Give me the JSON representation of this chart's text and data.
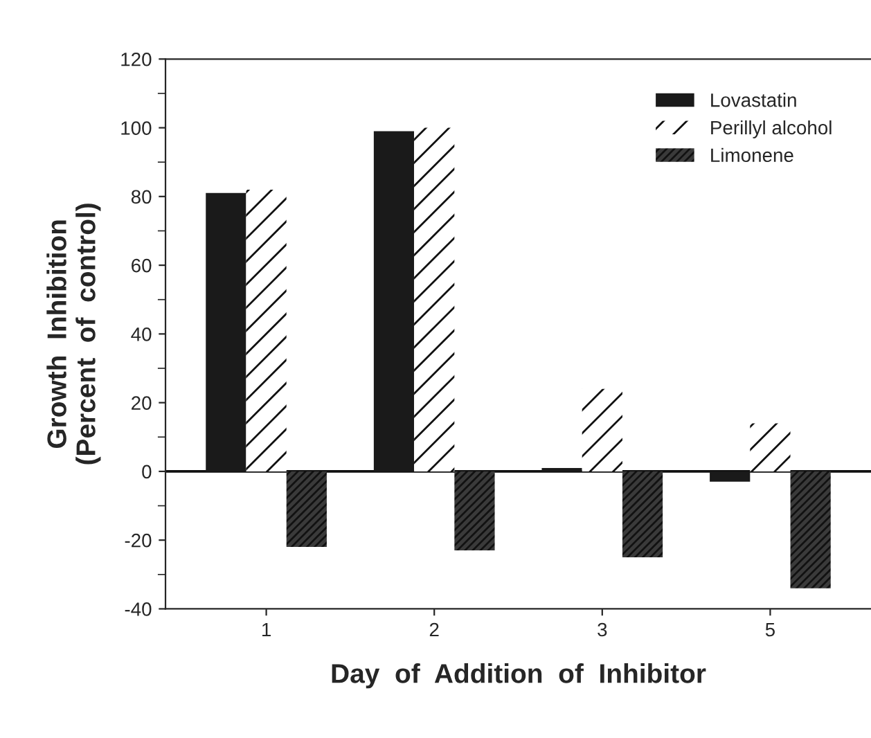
{
  "chart_data": {
    "type": "bar",
    "xlabel": "Day  of  Addition  of  Inhibitor",
    "ylabel": "Growth  Inhibition\n(Percent  of  control)",
    "categories": [
      "1",
      "2",
      "3",
      "5"
    ],
    "series": [
      {
        "name": "Lovastatin",
        "color": "#1a1a1a",
        "values": [
          81,
          99,
          1,
          -3
        ]
      },
      {
        "name": "Perillyl alcohol",
        "color": "#ffffff",
        "values": [
          82,
          100,
          24,
          14
        ]
      },
      {
        "name": "Limonene",
        "color": "#3a3a3a",
        "values": [
          -22,
          -23,
          -25,
          -34
        ]
      }
    ],
    "ylim": [
      -40,
      120
    ],
    "yticks": [
      -40,
      -20,
      0,
      20,
      40,
      60,
      80,
      100,
      120
    ],
    "ref_lines": [
      {
        "axis": "y",
        "value": 0
      }
    ],
    "grid": false,
    "legend": "top right"
  }
}
